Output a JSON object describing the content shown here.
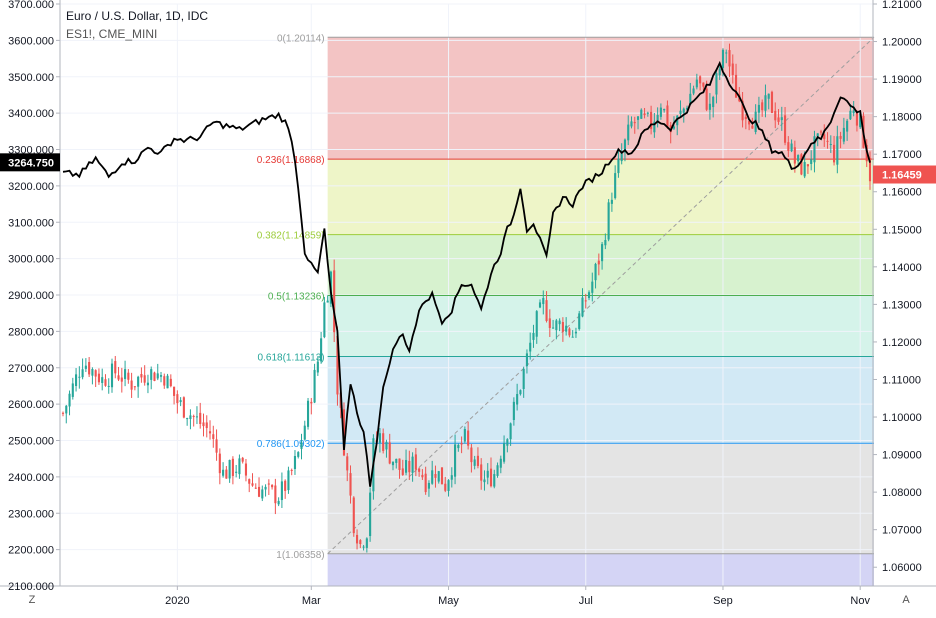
{
  "chart_data": {
    "type": "candlestick",
    "title": "Euro / U.S. Dollar, 1D, IDC",
    "compare_symbol": "ES1!, CME_MINI",
    "colors": {
      "up": "#26a69a",
      "down": "#ef5350",
      "compare_line": "#000000",
      "price_label_bg": "#ef5350",
      "left_label_bg": "#000000",
      "grid": "#f0f3fa",
      "axis": "#b2b5be"
    },
    "left_axis": {
      "min": 2100,
      "max": 3700,
      "ticks": [
        "3700.000",
        "3600.000",
        "3500.000",
        "3400.000",
        "3300.000",
        "3200.000",
        "3100.000",
        "3000.000",
        "2900.000",
        "2800.000",
        "2700.000",
        "2600.000",
        "2500.000",
        "2400.000",
        "2300.000",
        "2200.000",
        "2100.000"
      ],
      "last_value_label": "3264.750"
    },
    "right_axis": {
      "min": 1.055,
      "max": 1.21,
      "ticks": [
        "1.21000",
        "1.20000",
        "1.19000",
        "1.18000",
        "1.17000",
        "1.16000",
        "1.15000",
        "1.14000",
        "1.13000",
        "1.12000",
        "1.11000",
        "1.10000",
        "1.09000",
        "1.08000",
        "1.07000",
        "1.06000"
      ],
      "last_price_label": "1.16459"
    },
    "x_axis": {
      "labels": [
        {
          "text": "2020",
          "bar": 35
        },
        {
          "text": "Mar",
          "bar": 76
        },
        {
          "text": "May",
          "bar": 118
        },
        {
          "text": "Jul",
          "bar": 160
        },
        {
          "text": "Sep",
          "bar": 202
        },
        {
          "text": "Nov",
          "bar": 244
        }
      ],
      "bar_count": 248
    },
    "fib_levels": [
      {
        "ratio": 0,
        "label": "0(1.20114)",
        "price": 1.20114,
        "color": "#9e9e9e",
        "fill": "#f3c4c4"
      },
      {
        "ratio": 0.236,
        "label": "0.236(1.16868)",
        "price": 1.16868,
        "color": "#e53935",
        "fill": "#eef5c8"
      },
      {
        "ratio": 0.382,
        "label": "0.382(1.14859)",
        "price": 1.14859,
        "color": "#9ccc3a",
        "fill": "#d7f2cf"
      },
      {
        "ratio": 0.5,
        "label": "0.5(1.13236)",
        "price": 1.13236,
        "color": "#4caf50",
        "fill": "#d5f3ea"
      },
      {
        "ratio": 0.618,
        "label": "0.618(1.11613)",
        "price": 1.11613,
        "color": "#26a69a",
        "fill": "#d2e9f5"
      },
      {
        "ratio": 0.786,
        "label": "0.786(1.09302)",
        "price": 1.09302,
        "color": "#2196f3",
        "fill": "#e4e4e4"
      },
      {
        "ratio": 1,
        "label": "1(1.06358)",
        "price": 1.06358,
        "color": "#9e9e9e",
        "fill": "#d4d4f5"
      }
    ],
    "fib_start_bar": 81,
    "fib_end_bar": 248,
    "eurusd_close": [
      [
        0,
        1.101
      ],
      [
        6,
        1.115
      ],
      [
        12,
        1.11
      ],
      [
        16,
        1.112
      ],
      [
        21,
        1.109
      ],
      [
        26,
        1.112
      ],
      [
        31,
        1.111
      ],
      [
        35,
        1.104
      ],
      [
        40,
        1.1
      ],
      [
        45,
        1.096
      ],
      [
        49,
        1.085
      ],
      [
        54,
        1.087
      ],
      [
        58,
        1.082
      ],
      [
        62,
        1.08
      ],
      [
        66,
        1.079
      ],
      [
        69,
        1.083
      ],
      [
        72,
        1.09
      ],
      [
        75,
        1.102
      ],
      [
        78,
        1.115
      ],
      [
        80,
        1.13
      ],
      [
        82,
        1.138
      ],
      [
        84,
        1.108
      ],
      [
        87,
        1.085
      ],
      [
        89,
        1.072
      ],
      [
        91,
        1.066
      ],
      [
        93,
        1.07
      ],
      [
        95,
        1.092
      ],
      [
        97,
        1.095
      ],
      [
        100,
        1.09
      ],
      [
        104,
        1.085
      ],
      [
        108,
        1.088
      ],
      [
        111,
        1.083
      ],
      [
        114,
        1.086
      ],
      [
        117,
        1.082
      ],
      [
        120,
        1.09
      ],
      [
        123,
        1.094
      ],
      [
        126,
        1.086
      ],
      [
        129,
        1.083
      ],
      [
        132,
        1.085
      ],
      [
        135,
        1.094
      ],
      [
        138,
        1.102
      ],
      [
        141,
        1.112
      ],
      [
        144,
        1.123
      ],
      [
        147,
        1.13
      ],
      [
        150,
        1.124
      ],
      [
        153,
        1.125
      ],
      [
        156,
        1.122
      ],
      [
        159,
        1.129
      ],
      [
        162,
        1.136
      ],
      [
        165,
        1.145
      ],
      [
        168,
        1.16
      ],
      [
        171,
        1.17
      ],
      [
        174,
        1.178
      ],
      [
        177,
        1.179
      ],
      [
        180,
        1.178
      ],
      [
        183,
        1.184
      ],
      [
        186,
        1.176
      ],
      [
        190,
        1.182
      ],
      [
        194,
        1.19
      ],
      [
        198,
        1.182
      ],
      [
        201,
        1.193
      ],
      [
        203,
        1.198
      ],
      [
        205,
        1.189
      ],
      [
        208,
        1.182
      ],
      [
        212,
        1.179
      ],
      [
        216,
        1.184
      ],
      [
        220,
        1.178
      ],
      [
        224,
        1.168
      ],
      [
        227,
        1.166
      ],
      [
        230,
        1.172
      ],
      [
        233,
        1.174
      ],
      [
        236,
        1.17
      ],
      [
        239,
        1.177
      ],
      [
        242,
        1.183
      ],
      [
        244,
        1.178
      ],
      [
        246,
        1.17
      ],
      [
        247,
        1.1646
      ]
    ],
    "es_close": [
      [
        0,
        3235
      ],
      [
        5,
        3230
      ],
      [
        10,
        3275
      ],
      [
        14,
        3225
      ],
      [
        18,
        3265
      ],
      [
        22,
        3270
      ],
      [
        26,
        3305
      ],
      [
        30,
        3290
      ],
      [
        34,
        3330
      ],
      [
        38,
        3325
      ],
      [
        42,
        3335
      ],
      [
        46,
        3375
      ],
      [
        50,
        3365
      ],
      [
        54,
        3355
      ],
      [
        58,
        3370
      ],
      [
        62,
        3385
      ],
      [
        66,
        3395
      ],
      [
        68,
        3375
      ],
      [
        70,
        3330
      ],
      [
        72,
        3200
      ],
      [
        74,
        3020
      ],
      [
        76,
        2980
      ],
      [
        78,
        2960
      ],
      [
        80,
        3080
      ],
      [
        82,
        2900
      ],
      [
        84,
        2800
      ],
      [
        86,
        2470
      ],
      [
        88,
        2660
      ],
      [
        90,
        2580
      ],
      [
        92,
        2520
      ],
      [
        94,
        2380
      ],
      [
        96,
        2500
      ],
      [
        98,
        2640
      ],
      [
        100,
        2720
      ],
      [
        102,
        2770
      ],
      [
        104,
        2790
      ],
      [
        106,
        2750
      ],
      [
        108,
        2820
      ],
      [
        110,
        2880
      ],
      [
        113,
        2900
      ],
      [
        116,
        2830
      ],
      [
        119,
        2860
      ],
      [
        122,
        2930
      ],
      [
        125,
        2930
      ],
      [
        128,
        2860
      ],
      [
        131,
        2960
      ],
      [
        134,
        3020
      ],
      [
        136,
        3080
      ],
      [
        138,
        3120
      ],
      [
        140,
        3200
      ],
      [
        142,
        3080
      ],
      [
        144,
        3100
      ],
      [
        146,
        3050
      ],
      [
        148,
        3000
      ],
      [
        150,
        3120
      ],
      [
        153,
        3170
      ],
      [
        156,
        3150
      ],
      [
        159,
        3200
      ],
      [
        162,
        3220
      ],
      [
        165,
        3240
      ],
      [
        168,
        3280
      ],
      [
        171,
        3300
      ],
      [
        174,
        3290
      ],
      [
        178,
        3350
      ],
      [
        182,
        3380
      ],
      [
        186,
        3360
      ],
      [
        190,
        3400
      ],
      [
        194,
        3440
      ],
      [
        198,
        3480
      ],
      [
        201,
        3540
      ],
      [
        203,
        3500
      ],
      [
        206,
        3460
      ],
      [
        209,
        3400
      ],
      [
        213,
        3360
      ],
      [
        217,
        3300
      ],
      [
        220,
        3290
      ],
      [
        223,
        3250
      ],
      [
        226,
        3270
      ],
      [
        229,
        3320
      ],
      [
        232,
        3330
      ],
      [
        235,
        3380
      ],
      [
        238,
        3450
      ],
      [
        241,
        3420
      ],
      [
        244,
        3400
      ],
      [
        246,
        3300
      ],
      [
        247,
        3265
      ]
    ]
  }
}
